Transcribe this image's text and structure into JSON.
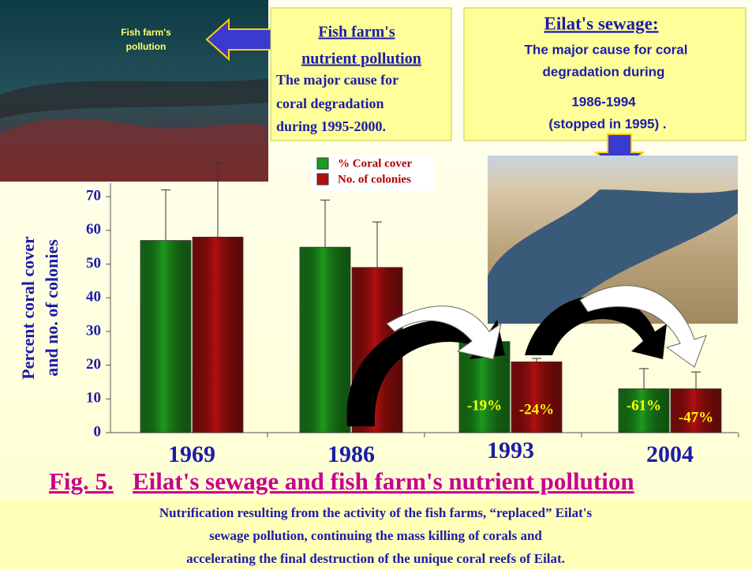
{
  "slide": {
    "photo_label": [
      "Fish farm's",
      "pollution"
    ],
    "box1": {
      "title": [
        "Fish farm's",
        "nutrient pollution"
      ],
      "body": [
        "The major cause for",
        "coral degradation",
        "during 1995-2000."
      ]
    },
    "box2": {
      "title": "Eilat's sewage:",
      "body": [
        "The major cause for coral",
        "degradation during",
        "1986-1994",
        "(stopped  in 1995) ."
      ]
    },
    "caption": {
      "fig": "Fig. 5.",
      "title": "Eilat's sewage and fish farm's nutrient pollution"
    },
    "paragraph": [
      "Nutrification resulting  from the activity of the fish farms, “replaced” Eilat's",
      "sewage pollution, continuing the mass killing of corals and",
      "accelerating the final  destruction of the unique coral reefs of Eilat."
    ]
  },
  "chart_data": {
    "type": "bar",
    "y_label": [
      "Percent coral cover",
      "and  no. of  colonies"
    ],
    "categories": [
      "1969",
      "1986",
      "1993",
      "2004"
    ],
    "series": [
      {
        "name": "% Coral cover",
        "color": "#1e9a1e",
        "values": [
          57,
          55,
          27,
          13
        ],
        "errors": [
          15,
          14,
          null,
          6
        ],
        "change_labels": [
          null,
          null,
          "-19%",
          "-61%"
        ]
      },
      {
        "name": "No. of colonies",
        "color": "#b01010",
        "values": [
          58,
          49,
          21,
          13
        ],
        "errors": [
          22,
          13.5,
          1,
          5
        ],
        "change_labels": [
          null,
          null,
          "-24%",
          "-47%"
        ]
      }
    ],
    "ylim": [
      0,
      74
    ],
    "yticks": [
      0,
      10,
      20,
      30,
      40,
      50,
      60,
      70
    ]
  }
}
